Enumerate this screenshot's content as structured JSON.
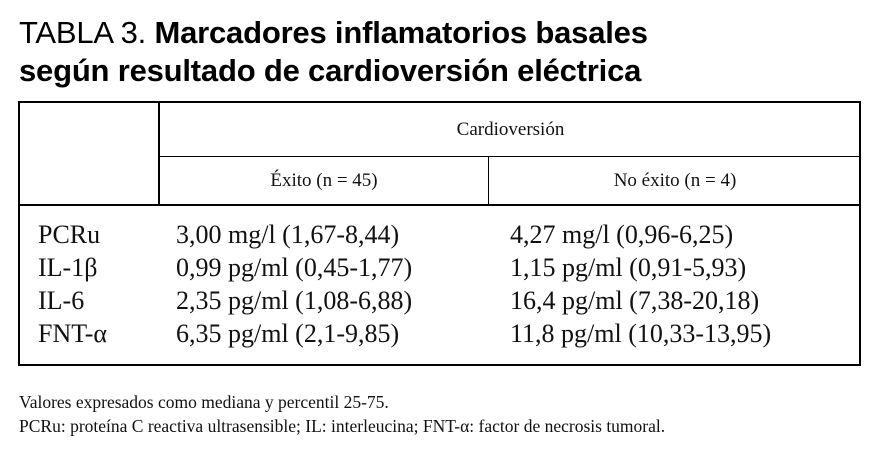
{
  "title": {
    "prefix": "TABLA 3.",
    "line1_bold": "Marcadores inflamatorios basales",
    "line2_bold": "según resultado de cardioversión eléctrica"
  },
  "table": {
    "group_header": "Cardioversión",
    "columns": [
      "Éxito (n = 45)",
      "No éxito (n = 4)"
    ],
    "rows": [
      {
        "label": "PCRu",
        "values": [
          "3,00 mg/l (1,67-8,44)",
          "4,27 mg/l (0,96-6,25)"
        ]
      },
      {
        "label": "IL-1β",
        "values": [
          "0,99 pg/ml (0,45-1,77)",
          "1,15 pg/ml (0,91-5,93)"
        ]
      },
      {
        "label": "IL-6",
        "values": [
          "2,35 pg/ml (1,08-6,88)",
          "16,4 pg/ml (7,38-20,18)"
        ]
      },
      {
        "label": "FNT-α",
        "values": [
          "6,35 pg/ml (2,1-9,85)",
          "11,8 pg/ml (10,33-13,95)"
        ]
      }
    ]
  },
  "footnotes": [
    "Valores expresados como mediana y percentil 25-75.",
    "PCRu: proteína C reactiva ultrasensible; IL: interleucina; FNT-α: factor de necrosis tumoral."
  ]
}
